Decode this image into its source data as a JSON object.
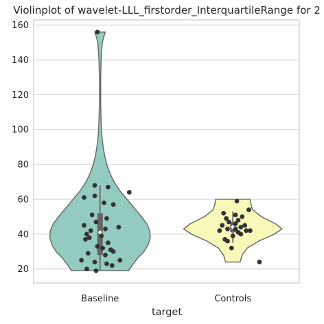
{
  "chart_data": {
    "type": "violin",
    "title": "Violinplot of wavelet-LLL_firstorder_InterquartileRange for 2",
    "xlabel": "target",
    "ylabel": "",
    "categories": [
      "Baseline",
      "Controls"
    ],
    "ylim": [
      12,
      163
    ],
    "yticks": [
      20,
      40,
      60,
      80,
      100,
      120,
      140,
      160
    ],
    "grid": "y",
    "colors": {
      "Baseline": "#93cbc0",
      "Controls": "#f8f8b8",
      "outline": "#6b6b6b",
      "points": "#333333",
      "box": "#666666",
      "grid": "#d0d0d0",
      "frame": "#c8c8c8"
    },
    "series": [
      {
        "name": "Baseline",
        "violin_range": [
          19,
          156
        ],
        "quartiles": [
          28,
          41,
          52
        ],
        "median": 41,
        "whisker": [
          19,
          68
        ],
        "profile": [
          [
            19,
            0.55
          ],
          [
            22,
            0.62
          ],
          [
            26,
            0.72
          ],
          [
            30,
            0.85
          ],
          [
            34,
            0.93
          ],
          [
            38,
            0.97
          ],
          [
            42,
            0.96
          ],
          [
            46,
            0.9
          ],
          [
            50,
            0.8
          ],
          [
            55,
            0.66
          ],
          [
            60,
            0.52
          ],
          [
            65,
            0.38
          ],
          [
            70,
            0.27
          ],
          [
            75,
            0.19
          ],
          [
            80,
            0.13
          ],
          [
            85,
            0.09
          ],
          [
            90,
            0.06
          ],
          [
            95,
            0.04
          ],
          [
            100,
            0.027
          ],
          [
            105,
            0.02
          ],
          [
            110,
            0.016
          ],
          [
            115,
            0.013
          ],
          [
            120,
            0.012
          ],
          [
            125,
            0.012
          ],
          [
            130,
            0.013
          ],
          [
            135,
            0.016
          ],
          [
            140,
            0.02
          ],
          [
            145,
            0.03
          ],
          [
            150,
            0.045
          ],
          [
            153,
            0.07
          ],
          [
            156,
            0.1
          ]
        ],
        "points": [
          [
            -0.02,
            156
          ],
          [
            -0.04,
            68
          ],
          [
            0.06,
            67
          ],
          [
            -0.12,
            61
          ],
          [
            0.22,
            64
          ],
          [
            -0.04,
            62
          ],
          [
            0.03,
            58
          ],
          [
            0.1,
            57
          ],
          [
            -0.06,
            51
          ],
          [
            0.05,
            49
          ],
          [
            -0.03,
            47
          ],
          [
            0.14,
            44
          ],
          [
            -0.12,
            45
          ],
          [
            0.04,
            43
          ],
          [
            -0.07,
            42
          ],
          [
            -0.1,
            40
          ],
          [
            0.01,
            39
          ],
          [
            -0.08,
            38
          ],
          [
            -0.11,
            37
          ],
          [
            0.06,
            35
          ],
          [
            -0.02,
            33
          ],
          [
            0.02,
            32
          ],
          [
            0.08,
            31
          ],
          [
            0.1,
            30
          ],
          [
            -0.09,
            29
          ],
          [
            0.04,
            28
          ],
          [
            -0.14,
            25
          ],
          [
            0.15,
            25
          ],
          [
            -0.04,
            24
          ],
          [
            0.05,
            23
          ],
          [
            0.09,
            22
          ],
          [
            -0.1,
            20
          ],
          [
            -0.03,
            19
          ]
        ]
      },
      {
        "name": "Controls",
        "violin_range": [
          24,
          60
        ],
        "quartiles": [
          41,
          44,
          47
        ],
        "median": 44,
        "whisker": [
          35,
          53
        ],
        "profile": [
          [
            24,
            0.14
          ],
          [
            28,
            0.18
          ],
          [
            32,
            0.28
          ],
          [
            36,
            0.5
          ],
          [
            40,
            0.8
          ],
          [
            43,
            0.95
          ],
          [
            46,
            0.82
          ],
          [
            50,
            0.55
          ],
          [
            54,
            0.38
          ],
          [
            57,
            0.35
          ],
          [
            60,
            0.33
          ]
        ],
        "points": [
          [
            0.03,
            59
          ],
          [
            0.12,
            54
          ],
          [
            -0.07,
            52
          ],
          [
            0.02,
            51
          ],
          [
            -0.05,
            49
          ],
          [
            0.07,
            50
          ],
          [
            0.04,
            48
          ],
          [
            -0.03,
            47
          ],
          [
            0.02,
            46
          ],
          [
            0.09,
            45
          ],
          [
            -0.08,
            45
          ],
          [
            0.06,
            44
          ],
          [
            -0.04,
            43
          ],
          [
            0.02,
            43
          ],
          [
            0.1,
            42
          ],
          [
            -0.1,
            42
          ],
          [
            0.13,
            42
          ],
          [
            0.04,
            41
          ],
          [
            0.06,
            40
          ],
          [
            0.0,
            39
          ],
          [
            -0.06,
            37
          ],
          [
            -0.04,
            36
          ],
          [
            -0.01,
            32
          ],
          [
            0.2,
            24
          ]
        ]
      }
    ]
  }
}
